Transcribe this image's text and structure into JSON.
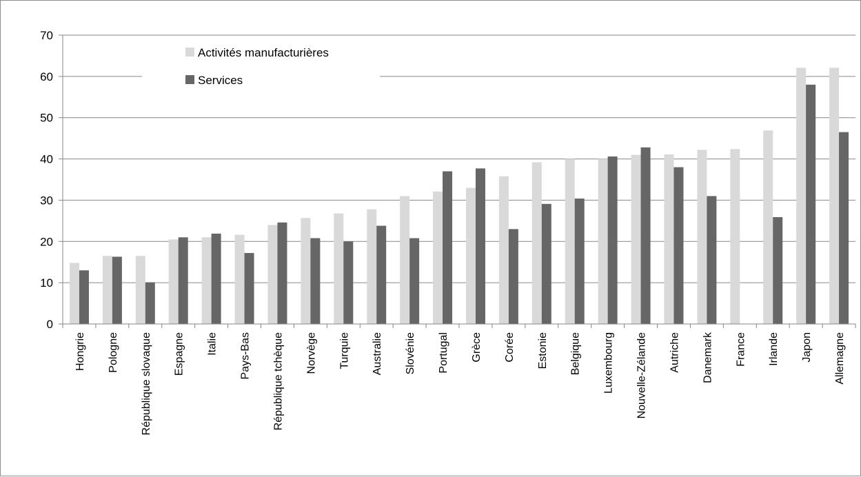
{
  "chart_data": {
    "type": "bar",
    "title": "",
    "xlabel": "",
    "ylabel": "",
    "ylim": [
      0,
      70
    ],
    "yticks": [
      0,
      10,
      20,
      30,
      40,
      50,
      60,
      70
    ],
    "grid": true,
    "legend_position": "top-left",
    "categories": [
      "Hongrie",
      "Pologne",
      "République slovaque",
      "Espagne",
      "Italie",
      "Pays-Bas",
      "République tchèque",
      "Norvège",
      "Turquie",
      "Australie",
      "Slovénie",
      "Portugal",
      "Grèce",
      "Corée",
      "Estonie",
      "Belgique",
      "Luxembourg",
      "Nouvelle-Zélande",
      "Autriche",
      "Danemark",
      "France",
      "Irlande",
      "Japon",
      "Allemagne"
    ],
    "series": [
      {
        "name": "Activités manufacturières",
        "color": "#d9d9d9",
        "values": [
          14.8,
          16.5,
          16.5,
          20.5,
          21.0,
          21.6,
          24.0,
          25.7,
          26.8,
          27.8,
          31.0,
          32.1,
          33.0,
          35.8,
          39.2,
          40.0,
          40.0,
          41.0,
          41.1,
          42.2,
          42.4,
          46.9,
          62.1,
          62.1
        ]
      },
      {
        "name": "Services",
        "color": "#666666",
        "values": [
          13.0,
          16.3,
          10.1,
          21.0,
          21.9,
          17.2,
          24.6,
          20.8,
          20.0,
          23.8,
          20.8,
          37.0,
          37.7,
          23.0,
          29.1,
          30.4,
          40.6,
          42.8,
          38.0,
          31.0,
          null,
          25.9,
          58.0,
          46.5
        ]
      }
    ]
  }
}
